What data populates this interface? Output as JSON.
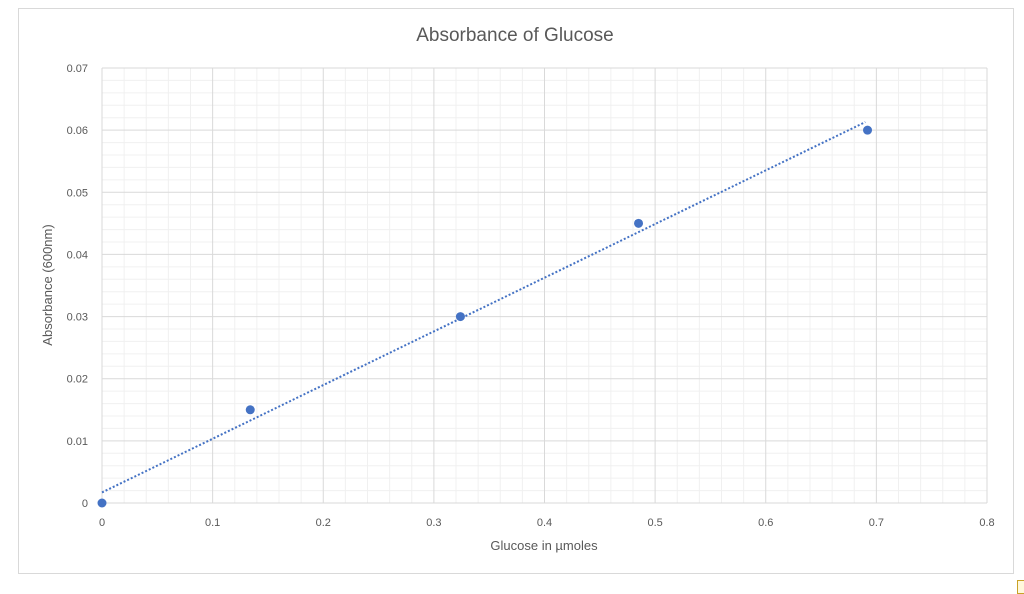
{
  "chart_data": {
    "type": "scatter",
    "title": "Absorbance of Glucose",
    "xlabel": "Glucose in µmoles",
    "ylabel": "Absorbance (600nm)",
    "xlim": [
      0,
      0.8
    ],
    "ylim": [
      0,
      0.07
    ],
    "x_ticks": [
      "0",
      "0.1",
      "0.2",
      "0.3",
      "0.4",
      "0.5",
      "0.6",
      "0.7",
      "0.8"
    ],
    "y_ticks": [
      "0",
      "0.01",
      "0.02",
      "0.03",
      "0.04",
      "0.05",
      "0.06",
      "0.07"
    ],
    "grid": true,
    "legend": "none",
    "series": [
      {
        "x": [
          0,
          0.134,
          0.324,
          0.485,
          0.692
        ],
        "y": [
          0,
          0.015,
          0.03,
          0.045,
          0.06
        ],
        "color": "#4472c4"
      }
    ],
    "trendline": {
      "type": "linear",
      "style": "dotted",
      "color": "#4472c4",
      "x": [
        0,
        0.69
      ],
      "y": [
        0.0017,
        0.0613
      ]
    }
  }
}
